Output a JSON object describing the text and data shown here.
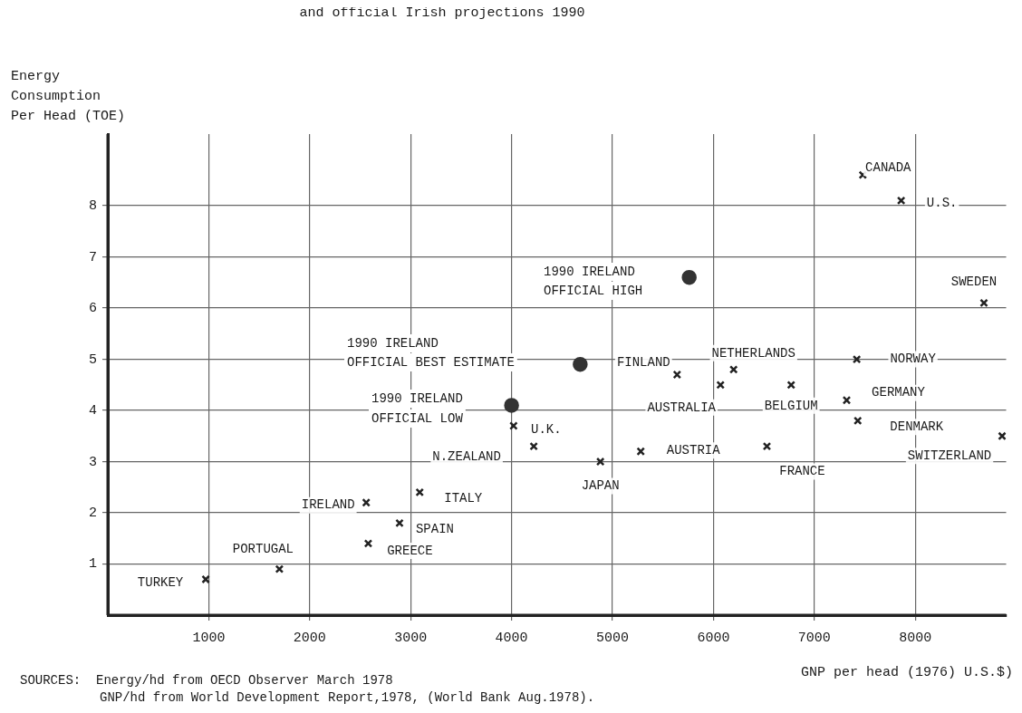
{
  "chart_data": {
    "type": "scatter",
    "title": "and official Irish projections 1990",
    "xlabel": "GNP per head (1976) U.S.$)",
    "ylabel": "Energy Consumption Per Head (TOE)",
    "xlim": [
      0,
      8900
    ],
    "ylim": [
      0,
      9.4
    ],
    "xticks": [
      1000,
      2000,
      3000,
      4000,
      5000,
      6000,
      7000,
      8000
    ],
    "yticks": [
      1,
      2,
      3,
      4,
      5,
      6,
      7,
      8
    ],
    "grid": true,
    "series": [
      {
        "color": "#222222",
        "marker": "cross",
        "x": [
          970,
          1700,
          2560,
          2580,
          2890,
          3090,
          4220,
          4020,
          4880,
          5280,
          5640,
          6070,
          6200,
          6770,
          6530,
          7420,
          7320,
          7430,
          8860,
          8680,
          7480,
          7860
        ],
        "values": [
          0.7,
          0.9,
          2.2,
          1.4,
          1.8,
          2.4,
          3.3,
          3.7,
          3.0,
          3.2,
          4.7,
          4.5,
          4.8,
          4.5,
          3.3,
          5.0,
          4.2,
          3.8,
          3.5,
          6.1,
          8.6,
          8.1
        ]
      },
      {
        "color": "#333333",
        "marker": "circle",
        "x": [
          5760,
          4680,
          4000
        ],
        "values": [
          6.6,
          4.9,
          4.1
        ]
      }
    ],
    "annotations": [
      {
        "text": "TURKEY",
        "x": 970,
        "y": 0.7
      },
      {
        "text": "PORTUGAL",
        "x": 1700,
        "y": 0.9
      },
      {
        "text": "IRELAND",
        "x": 2560,
        "y": 2.2
      },
      {
        "text": "GREECE",
        "x": 2580,
        "y": 1.4
      },
      {
        "text": "SPAIN",
        "x": 2890,
        "y": 1.8
      },
      {
        "text": "ITALY",
        "x": 3090,
        "y": 2.4
      },
      {
        "text": "N.ZEALAND",
        "x": 4220,
        "y": 3.3
      },
      {
        "text": "U.K.",
        "x": 4020,
        "y": 3.7
      },
      {
        "text": "JAPAN",
        "x": 4880,
        "y": 3.0
      },
      {
        "text": "AUSTRIA",
        "x": 5280,
        "y": 3.2
      },
      {
        "text": "FINLAND",
        "x": 5640,
        "y": 4.7
      },
      {
        "text": "AUSTRALIA",
        "x": 6070,
        "y": 4.5
      },
      {
        "text": "NETHERLANDS",
        "x": 6200,
        "y": 4.8
      },
      {
        "text": "BELGIUM",
        "x": 6770,
        "y": 4.5
      },
      {
        "text": "FRANCE",
        "x": 6530,
        "y": 3.3
      },
      {
        "text": "NORWAY",
        "x": 7420,
        "y": 5.0
      },
      {
        "text": "GERMANY",
        "x": 7320,
        "y": 4.2
      },
      {
        "text": "DENMARK",
        "x": 7430,
        "y": 3.8
      },
      {
        "text": "SWITZERLAND",
        "x": 8860,
        "y": 3.5
      },
      {
        "text": "SWEDEN",
        "x": 8680,
        "y": 6.1
      },
      {
        "text": "CANADA",
        "x": 7480,
        "y": 8.6
      },
      {
        "text": "U.S.",
        "x": 7860,
        "y": 8.1
      },
      "1990 IRELAND",
      "OFFICIAL HIGH",
      "1990 IRELAND",
      "OFFICIAL BEST ESTIMATE",
      "1990 IRELAND",
      "OFFICIAL LOW",
      "SOURCES:  Energy/hd from OECD Observer March 1978",
      "GNP/hd from World Development Report,1978, (World Bank Aug.1978)."
    ]
  }
}
